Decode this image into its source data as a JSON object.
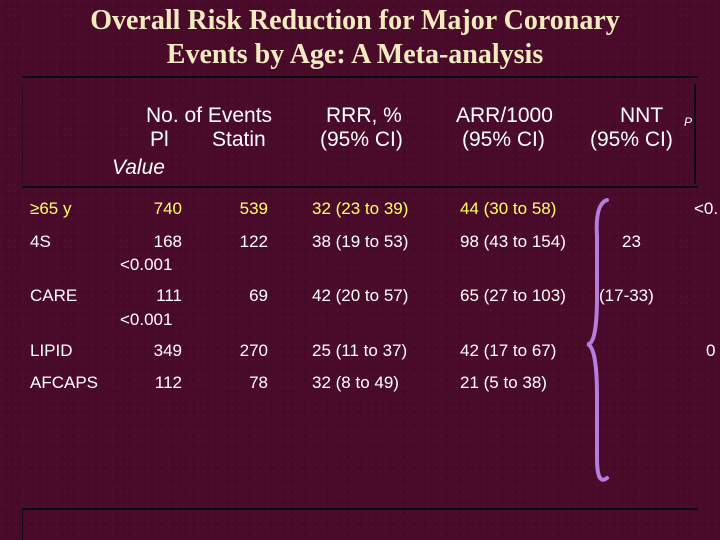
{
  "slide": {
    "title_line1": "Overall Risk Reduction for Major Coronary",
    "title_line2": "Events by Age: A Meta-analysis"
  },
  "header": {
    "events_label": "No. of Events",
    "pl_label": "Pl",
    "statin_label": "Statin",
    "rrr_label": "RRR, %",
    "rrr_ci": "(95% CI)",
    "arr_label": "ARR/1000",
    "arr_ci": "(95% CI)",
    "nnt_label": "NNT",
    "nnt_ci": "(95% CI)",
    "p_label": "P",
    "value_label": "Value"
  },
  "rows": [
    {
      "study": "≥65 y",
      "pl": "740",
      "statin": "539",
      "rrr": "32 (23 to 39)",
      "arr": "44 (30 to 58)",
      "pval": ""
    },
    {
      "study": "4S",
      "pl": "168",
      "statin": "122",
      "rrr": "38 (19 to 53)",
      "arr": "98 (43 to 154)",
      "pval": "<0.001"
    },
    {
      "study": "CARE",
      "pl": "111",
      "statin": "69",
      "rrr": "42 (20 to 57)",
      "arr": "65 (27 to 103)",
      "pval": "<0.001"
    },
    {
      "study": "LIPID",
      "pl": "349",
      "statin": "270",
      "rrr": "25 (11 to 37)",
      "arr": "42 (17 to 67)",
      "pval": ""
    },
    {
      "study": "AFCAPS",
      "pl": "112",
      "statin": "78",
      "rrr": "32 (8 to 49)",
      "arr": "21 (5 to 38)",
      "pval": ""
    }
  ],
  "pooled": {
    "nnt_value": "23",
    "nnt_ci": "(17-33)",
    "p_top_clipped": "<0.",
    "p_bottom_clipped": "0"
  },
  "colors": {
    "background": "#4a0a2a",
    "title": "#f3ebc0",
    "highlight_row": "#ffff66",
    "bracket": "#b57edc",
    "rules": "#0c0c0c"
  }
}
